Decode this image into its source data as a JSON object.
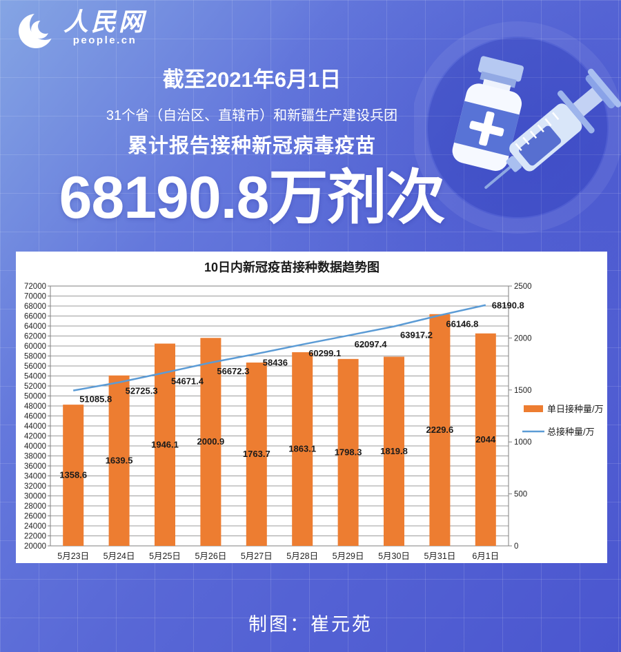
{
  "logo": {
    "site_name": "人民网",
    "site_domain": "people.cn"
  },
  "header": {
    "date_line": "截至2021年6月1日",
    "scope_line": "31个省（自治区、直辖市）和新疆生产建设兵团",
    "subject_line": "累计报告接种新冠病毒疫苗",
    "headline_number": "68190.8万剂次"
  },
  "colors": {
    "bar_color": "#ED7D31",
    "line_color": "#5B9BD5",
    "background_blue": "#5867d6",
    "card_background": "#ffffff"
  },
  "chart_data": {
    "type": "bar",
    "subtype": "bar+line combo, dual axis",
    "title": "10日内新冠疫苗接种数据趋势图",
    "categories": [
      "5月23日",
      "5月24日",
      "5月25日",
      "5月26日",
      "5月27日",
      "5月28日",
      "5月29日",
      "5月30日",
      "5月31日",
      "6月1日"
    ],
    "series": [
      {
        "name": "单日接种量/万",
        "type": "bar",
        "axis": "right",
        "color": "#ED7D31",
        "values": [
          1358.6,
          1639.5,
          1946.1,
          2000.9,
          1763.7,
          1863.1,
          1798.3,
          1819.8,
          2229.6,
          2044
        ]
      },
      {
        "name": "总接种量/万",
        "type": "line",
        "axis": "left",
        "color": "#5B9BD5",
        "values": [
          51085.8,
          52725.3,
          54671.4,
          56672.3,
          58436,
          60299.1,
          62097.4,
          63917.2,
          66146.8,
          68190.8
        ]
      }
    ],
    "left_axis": {
      "min": 20000,
      "max": 72000,
      "step": 2000
    },
    "right_axis": {
      "min": 0,
      "max": 2500,
      "step": 500
    },
    "grid": true,
    "legend_position": "right",
    "data_labels": true
  },
  "footer": {
    "credit": "制图：崔元苑"
  }
}
